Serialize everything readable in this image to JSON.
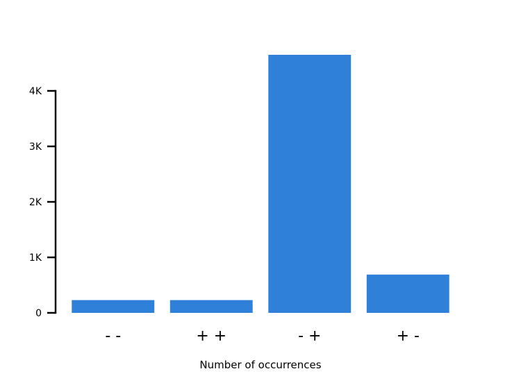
{
  "chart_data": {
    "type": "bar",
    "categories": [
      "- -",
      "+ +",
      "- +",
      "+ -"
    ],
    "values": [
      230,
      230,
      4650,
      690
    ],
    "title": "",
    "xlabel": "Number of occurrences",
    "ylabel": "",
    "ylim": [
      0,
      4650
    ],
    "yticks": [
      0,
      1000,
      2000,
      3000,
      4000
    ],
    "ytick_labels": [
      "0",
      "1K",
      "2K",
      "3K",
      "4K"
    ],
    "grid": false,
    "bar_color": "#2f80d9"
  }
}
